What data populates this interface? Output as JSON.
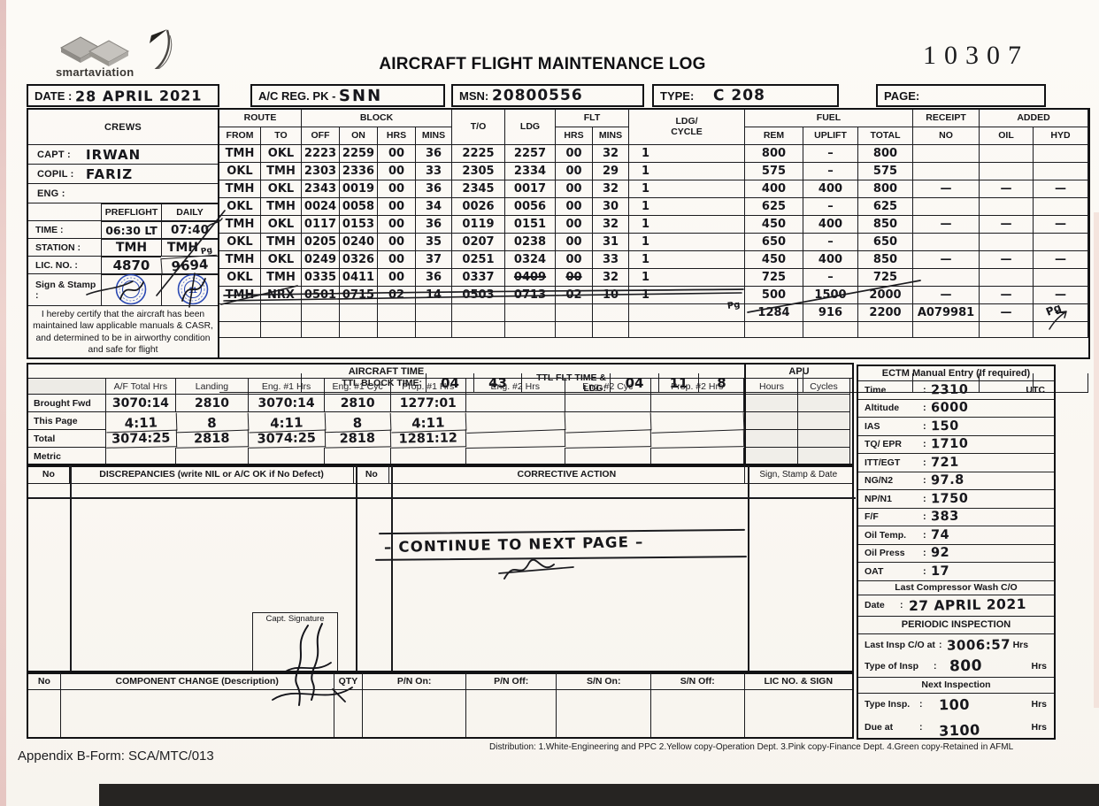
{
  "logo": {
    "brand": "smartaviation"
  },
  "page": {
    "title": "AIRCRAFT FLIGHT MAINTENANCE LOG",
    "serial": "10307",
    "appendix": "Appendix B-Form: SCA/MTC/013",
    "distribution": "Distribution: 1.White-Engineering and PPC  2.Yellow copy-Operation Dept.  3.Pink copy-Finance Dept.  4.Green copy-Retained in AFML"
  },
  "header_fields": {
    "date_label": "DATE :",
    "date_value": "28  APRIL  2021",
    "reg_label": "A/C REG. PK -",
    "reg_value": "SNN",
    "msn_label": "MSN:",
    "msn_value": "20800556",
    "type_label": "TYPE:",
    "type_value": "C 208",
    "page_label": "PAGE:"
  },
  "crews": {
    "header": "CREWS",
    "capt_label": "CAPT :",
    "capt_value": "IRWAN",
    "copil_label": "COPIL :",
    "copil_value": "FARIZ",
    "eng_label": "ENG :",
    "eng_value": "",
    "preflight": "PREFLIGHT",
    "daily": "DAILY",
    "time_label": "TIME :",
    "time_preflight": "06:30 LT",
    "time_daily": "07:40",
    "station_label": "STATION :",
    "station_preflight": "TMH",
    "station_daily": "TMH",
    "station_daily_note": "Pg",
    "lic_label": "LIC. NO. :",
    "lic_preflight": "4870",
    "lic_daily": "9694",
    "sign_label": "Sign & Stamp :",
    "stamp_number": "11",
    "certify": "I hereby certify that the aircraft has been maintained law applicable manuals & CASR, and determined to be in airworthy condition and safe for flight"
  },
  "flight": {
    "h_route": "ROUTE",
    "h_from": "FROM",
    "h_to": "TO",
    "h_block": "BLOCK",
    "h_off": "OFF",
    "h_on": "ON",
    "h_hrs": "HRS",
    "h_mins": "MINS",
    "h_to_time": "T/O",
    "h_ldg": "LDG",
    "h_flt": "FLT",
    "h_ldg_cycle_a": "LDG/",
    "h_ldg_cycle_b": "CYCLE",
    "h_fuel": "FUEL",
    "h_rem": "REM",
    "h_uplift": "UPLIFT",
    "h_total": "TOTAL",
    "h_receipt_a": "RECEIPT",
    "h_receipt_b": "NO",
    "h_added": "ADDED",
    "h_oil": "OIL",
    "h_hyd": "HYD",
    "rows": [
      {
        "f": "TMH",
        "t": "OKL",
        "off": "2223",
        "on": "2259",
        "h": "00",
        "m": "36",
        "to": "2225",
        "ldg": "2257",
        "fh": "00",
        "fm": "32",
        "c": "1",
        "rem": "800",
        "up": "–",
        "tot": "800",
        "rcp": "",
        "oil": "",
        "hyd": ""
      },
      {
        "f": "OKL",
        "t": "TMH",
        "off": "2303",
        "on": "2336",
        "h": "00",
        "m": "33",
        "to": "2305",
        "ldg": "2334",
        "fh": "00",
        "fm": "29",
        "c": "1",
        "rem": "575",
        "up": "–",
        "tot": "575",
        "rcp": "",
        "oil": "",
        "hyd": ""
      },
      {
        "f": "TMH",
        "t": "OKL",
        "off": "2343",
        "on": "0019",
        "h": "00",
        "m": "36",
        "to": "2345",
        "ldg": "0017",
        "fh": "00",
        "fm": "32",
        "c": "1",
        "rem": "400",
        "up": "400",
        "tot": "800",
        "rcp": "—",
        "oil": "—",
        "hyd": "—"
      },
      {
        "f": "OKL",
        "t": "TMH",
        "off": "0024",
        "on": "0058",
        "h": "00",
        "m": "34",
        "to": "0026",
        "ldg": "0056",
        "fh": "00",
        "fm": "30",
        "c": "1",
        "rem": "625",
        "up": "–",
        "tot": "625",
        "rcp": "",
        "oil": "",
        "hyd": ""
      },
      {
        "f": "TMH",
        "t": "OKL",
        "off": "0117",
        "on": "0153",
        "h": "00",
        "m": "36",
        "to": "0119",
        "ldg": "0151",
        "fh": "00",
        "fm": "32",
        "c": "1",
        "rem": "450",
        "up": "400",
        "tot": "850",
        "rcp": "—",
        "oil": "—",
        "hyd": "—"
      },
      {
        "f": "OKL",
        "t": "TMH",
        "off": "0205",
        "on": "0240",
        "h": "00",
        "m": "35",
        "to": "0207",
        "ldg": "0238",
        "fh": "00",
        "fm": "31",
        "c": "1",
        "rem": "650",
        "up": "–",
        "tot": "650",
        "rcp": "",
        "oil": "",
        "hyd": ""
      },
      {
        "f": "TMH",
        "t": "OKL",
        "off": "0249",
        "on": "0326",
        "h": "00",
        "m": "37",
        "to": "0251",
        "ldg": "0324",
        "fh": "00",
        "fm": "33",
        "c": "1",
        "rem": "450",
        "up": "400",
        "tot": "850",
        "rcp": "—",
        "oil": "—",
        "hyd": "—"
      },
      {
        "f": "OKL",
        "t": "TMH",
        "off": "0335",
        "on": "0411",
        "h": "00",
        "m": "36",
        "to": "0337",
        "ldg": "0409",
        "fh": "00",
        "fm": "32",
        "c": "1",
        "rem": "725",
        "up": "–",
        "tot": "725",
        "rcp": "",
        "oil": "",
        "hyd": "",
        "strike": [
          "ldg",
          "fh"
        ]
      },
      {
        "f": "TMH",
        "t": "NRX",
        "off": "0501",
        "on": "0715",
        "h": "02",
        "m": "14",
        "to": "0503",
        "ldg": "0713",
        "fh": "02",
        "fm": "10",
        "c": "1",
        "rem": "500",
        "up": "1500",
        "tot": "2000",
        "rcp": "—",
        "oil": "—",
        "hyd": "—",
        "row_struck": true
      },
      {
        "f": "",
        "t": "",
        "off": "",
        "on": "",
        "h": "",
        "m": "",
        "to": "",
        "ldg": "",
        "fh": "",
        "fm": "",
        "c": "",
        "rem": "1284",
        "up": "916",
        "tot": "2200",
        "rcp": "A079981",
        "oil": "—",
        "hyd": "—"
      },
      {
        "f": "",
        "t": "",
        "off": "",
        "on": "",
        "h": "",
        "m": "",
        "to": "",
        "ldg": "",
        "fh": "",
        "fm": "",
        "c": "",
        "rem": "",
        "up": "",
        "tot": "",
        "rcp": "",
        "oil": "",
        "hyd": ""
      }
    ],
    "ttl_block_label": "TTL BLOCK TIME:",
    "ttl_block_hrs": "04",
    "ttl_block_mins": "43",
    "ttl_flt_label": "TTL FLT TIME & LDG:",
    "ttl_flt_hrs": "04",
    "ttl_flt_mins": "11",
    "ttl_ldg": "8",
    "note_pg_row10": "Pg",
    "note_pg_margin": "Pg"
  },
  "aircraft_time": {
    "title": "AIRCRAFT TIME",
    "col_headers": [
      "A/F Total Hrs",
      "Landing",
      "Eng. #1 Hrs",
      "Eng. #1 Cyc",
      "Prop. #1 Hrs",
      "Eng. #2 Hrs",
      "Eng. #2 Cyc",
      "Prop. #2 Hrs"
    ],
    "rows": [
      {
        "label": "Brought Fwd",
        "v": [
          "3070:14",
          "2810",
          "3070:14",
          "2810",
          "1277:01",
          "",
          "",
          ""
        ]
      },
      {
        "label": "This Page",
        "v": [
          "4:11",
          "8",
          "4:11",
          "8",
          "4:11",
          "",
          "",
          ""
        ]
      },
      {
        "label": "Total",
        "v": [
          "3074:25",
          "2818",
          "3074:25",
          "2818",
          "1281:12",
          "",
          "",
          ""
        ]
      },
      {
        "label": "Metric",
        "v": [
          "",
          "",
          "",
          "",
          "",
          "",
          "",
          ""
        ]
      }
    ],
    "apu_title": "APU",
    "apu_hours": "Hours",
    "apu_cycles": "Cycles"
  },
  "ectm": {
    "title": "ECTM Manual Entry (If required)",
    "colon": ":",
    "rows": [
      {
        "label": "Time",
        "value": "2310",
        "suffix": "UTC"
      },
      {
        "label": "Altitude",
        "value": "6000"
      },
      {
        "label": "IAS",
        "value": "150"
      },
      {
        "label": "TQ/ EPR",
        "value": "1710"
      },
      {
        "label": "ITT/EGT",
        "value": "721"
      },
      {
        "label": "NG/N2",
        "value": "97.8"
      },
      {
        "label": "NP/N1",
        "value": "1750"
      },
      {
        "label": "F/F",
        "value": "383"
      },
      {
        "label": "Oil Temp.",
        "value": "74"
      },
      {
        "label": "Oil Press",
        "value": "92"
      },
      {
        "label": "OAT",
        "value": "17"
      }
    ],
    "wash_title": "Last Compressor Wash C/O",
    "date_label": "Date",
    "date_value": "27 APRIL 2021",
    "periodic_title": "PERIODIC INSPECTION",
    "last_insp_label": "Last Insp C/O at",
    "last_insp_value": "3006:57",
    "last_insp_unit": "Hrs",
    "type_insp_label": "Type of Insp",
    "type_insp_value": "800",
    "type_insp_unit": "Hrs",
    "next_title": "Next Inspection",
    "next_type_label": "Type Insp.",
    "next_type_value": "100",
    "next_type_unit": "Hrs",
    "due_label": "Due at",
    "due_value": "3100",
    "due_unit": "Hrs"
  },
  "discrepancies": {
    "h_no1": "No",
    "h_disc": "DISCREPANCIES (write NIL or A/C OK if No Defect)",
    "h_no2": "No",
    "h_corrective": "CORRECTIVE ACTION",
    "h_sign": "Sign, Stamp & Date",
    "corrective_note": "– CONTINUE TO NEXT PAGE –",
    "capt_sig_label": "Capt. Signature"
  },
  "component": {
    "h_no": "No",
    "h_desc": "COMPONENT CHANGE (Description)",
    "h_qty": "QTY",
    "h_pn_on": "P/N On:",
    "h_pn_off": "P/N Off:",
    "h_sn_on": "S/N On:",
    "h_sn_off": "S/N Off:",
    "h_lic": "LIC NO. & SIGN"
  }
}
